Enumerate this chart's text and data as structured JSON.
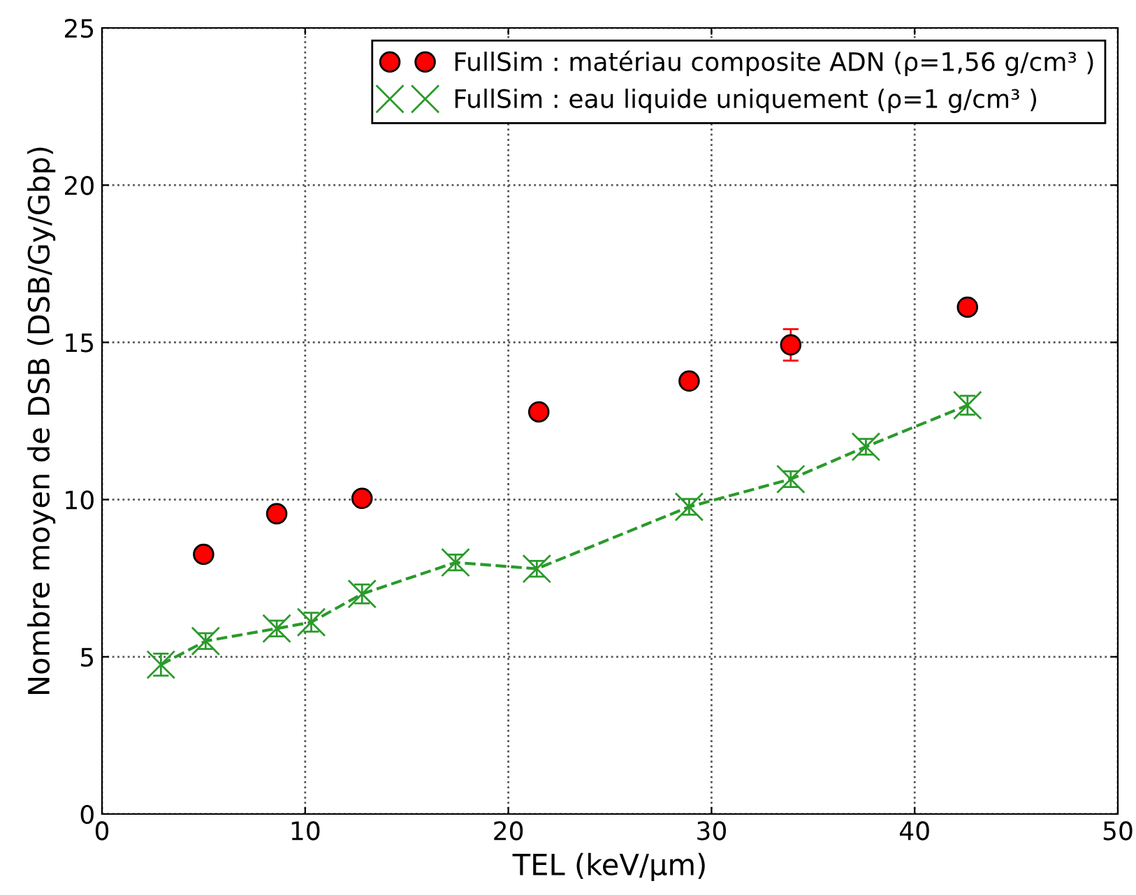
{
  "chart_data": {
    "type": "scatter",
    "xlabel": "TEL (keV/µm)",
    "ylabel": "Nombre moyen de DSB (DSB/Gy/Gbp)",
    "xlim": [
      0,
      50
    ],
    "xticks": [
      0,
      10,
      20,
      30,
      40,
      50
    ],
    "ylim": [
      0,
      25
    ],
    "yticks": [
      0,
      5,
      10,
      15,
      20,
      25
    ],
    "grid": true,
    "legend": "top right",
    "series": [
      {
        "name": "FullSim : matériau composite ADN (ρ=1,56 g/cm³ )",
        "color": "#ff0000",
        "marker": "circle",
        "x": [
          5.0,
          8.6,
          12.8,
          21.5,
          28.9,
          33.9,
          42.6
        ],
        "values": [
          8.26,
          9.55,
          10.04,
          12.79,
          13.77,
          14.92,
          16.12
        ],
        "errors": [
          0.1,
          0.1,
          0.1,
          0.1,
          0.2,
          0.5,
          0.1
        ]
      },
      {
        "name": "FullSim : eau liquide uniquement (ρ=1 g/cm³ )",
        "type": "line",
        "line_style": "dashed",
        "color": "#2a9a2a",
        "marker": "cross",
        "x": [
          2.9,
          5.1,
          8.6,
          10.3,
          12.8,
          17.4,
          21.4,
          28.9,
          33.9,
          37.6,
          42.6
        ],
        "values": [
          4.75,
          5.5,
          5.9,
          6.1,
          7.0,
          8.0,
          7.8,
          9.77,
          10.65,
          11.68,
          13.0
        ],
        "errors": [
          0.35,
          0.25,
          0.25,
          0.3,
          0.3,
          0.25,
          0.25,
          0.25,
          0.25,
          0.25,
          0.3
        ]
      }
    ]
  }
}
